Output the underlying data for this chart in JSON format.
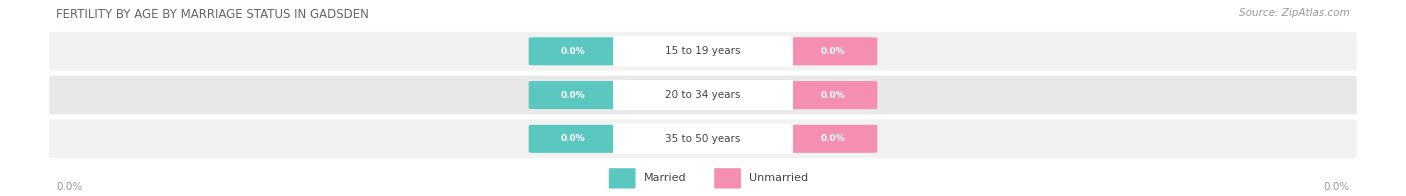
{
  "title": "FERTILITY BY AGE BY MARRIAGE STATUS IN GADSDEN",
  "source": "Source: ZipAtlas.com",
  "age_groups": [
    "15 to 19 years",
    "20 to 34 years",
    "35 to 50 years"
  ],
  "married_values": [
    0.0,
    0.0,
    0.0
  ],
  "unmarried_values": [
    0.0,
    0.0,
    0.0
  ],
  "married_color": "#5BC8C0",
  "unmarried_color": "#F48FB1",
  "bar_bg_color_light": "#F0F0F0",
  "bar_bg_color_dark": "#E5E5E5",
  "background_color": "#FFFFFF",
  "axis_label_left": "0.0%",
  "axis_label_right": "0.0%",
  "legend_married": "Married",
  "legend_unmarried": "Unmarried"
}
